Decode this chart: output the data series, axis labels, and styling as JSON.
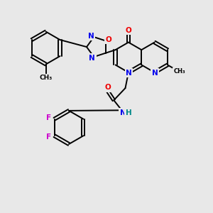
{
  "background_color": "#e8e8e8",
  "atom_colors": {
    "C": "#000000",
    "N": "#0000ee",
    "O": "#ee0000",
    "F": "#cc00cc",
    "H": "#008888"
  },
  "lw": 1.4,
  "fontsize": 7.5
}
